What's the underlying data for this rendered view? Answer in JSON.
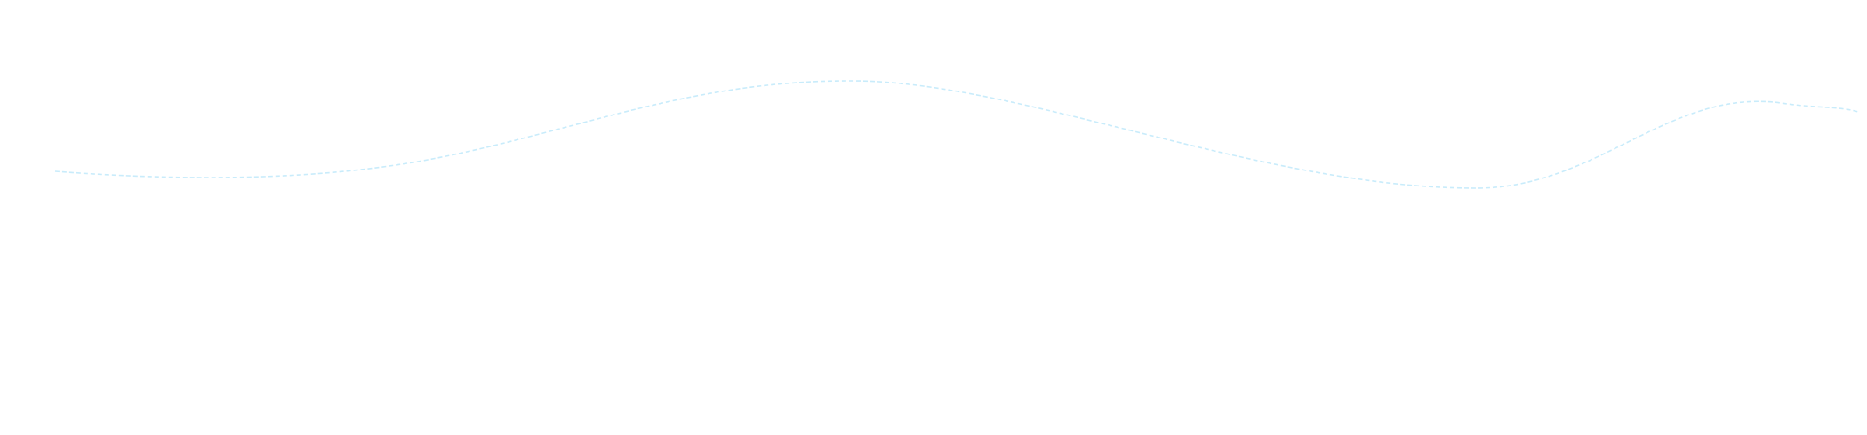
{
  "background_color": "#ffffff",
  "wave": {
    "stroke_color": "#c9ecfb",
    "style": "dashed"
  }
}
